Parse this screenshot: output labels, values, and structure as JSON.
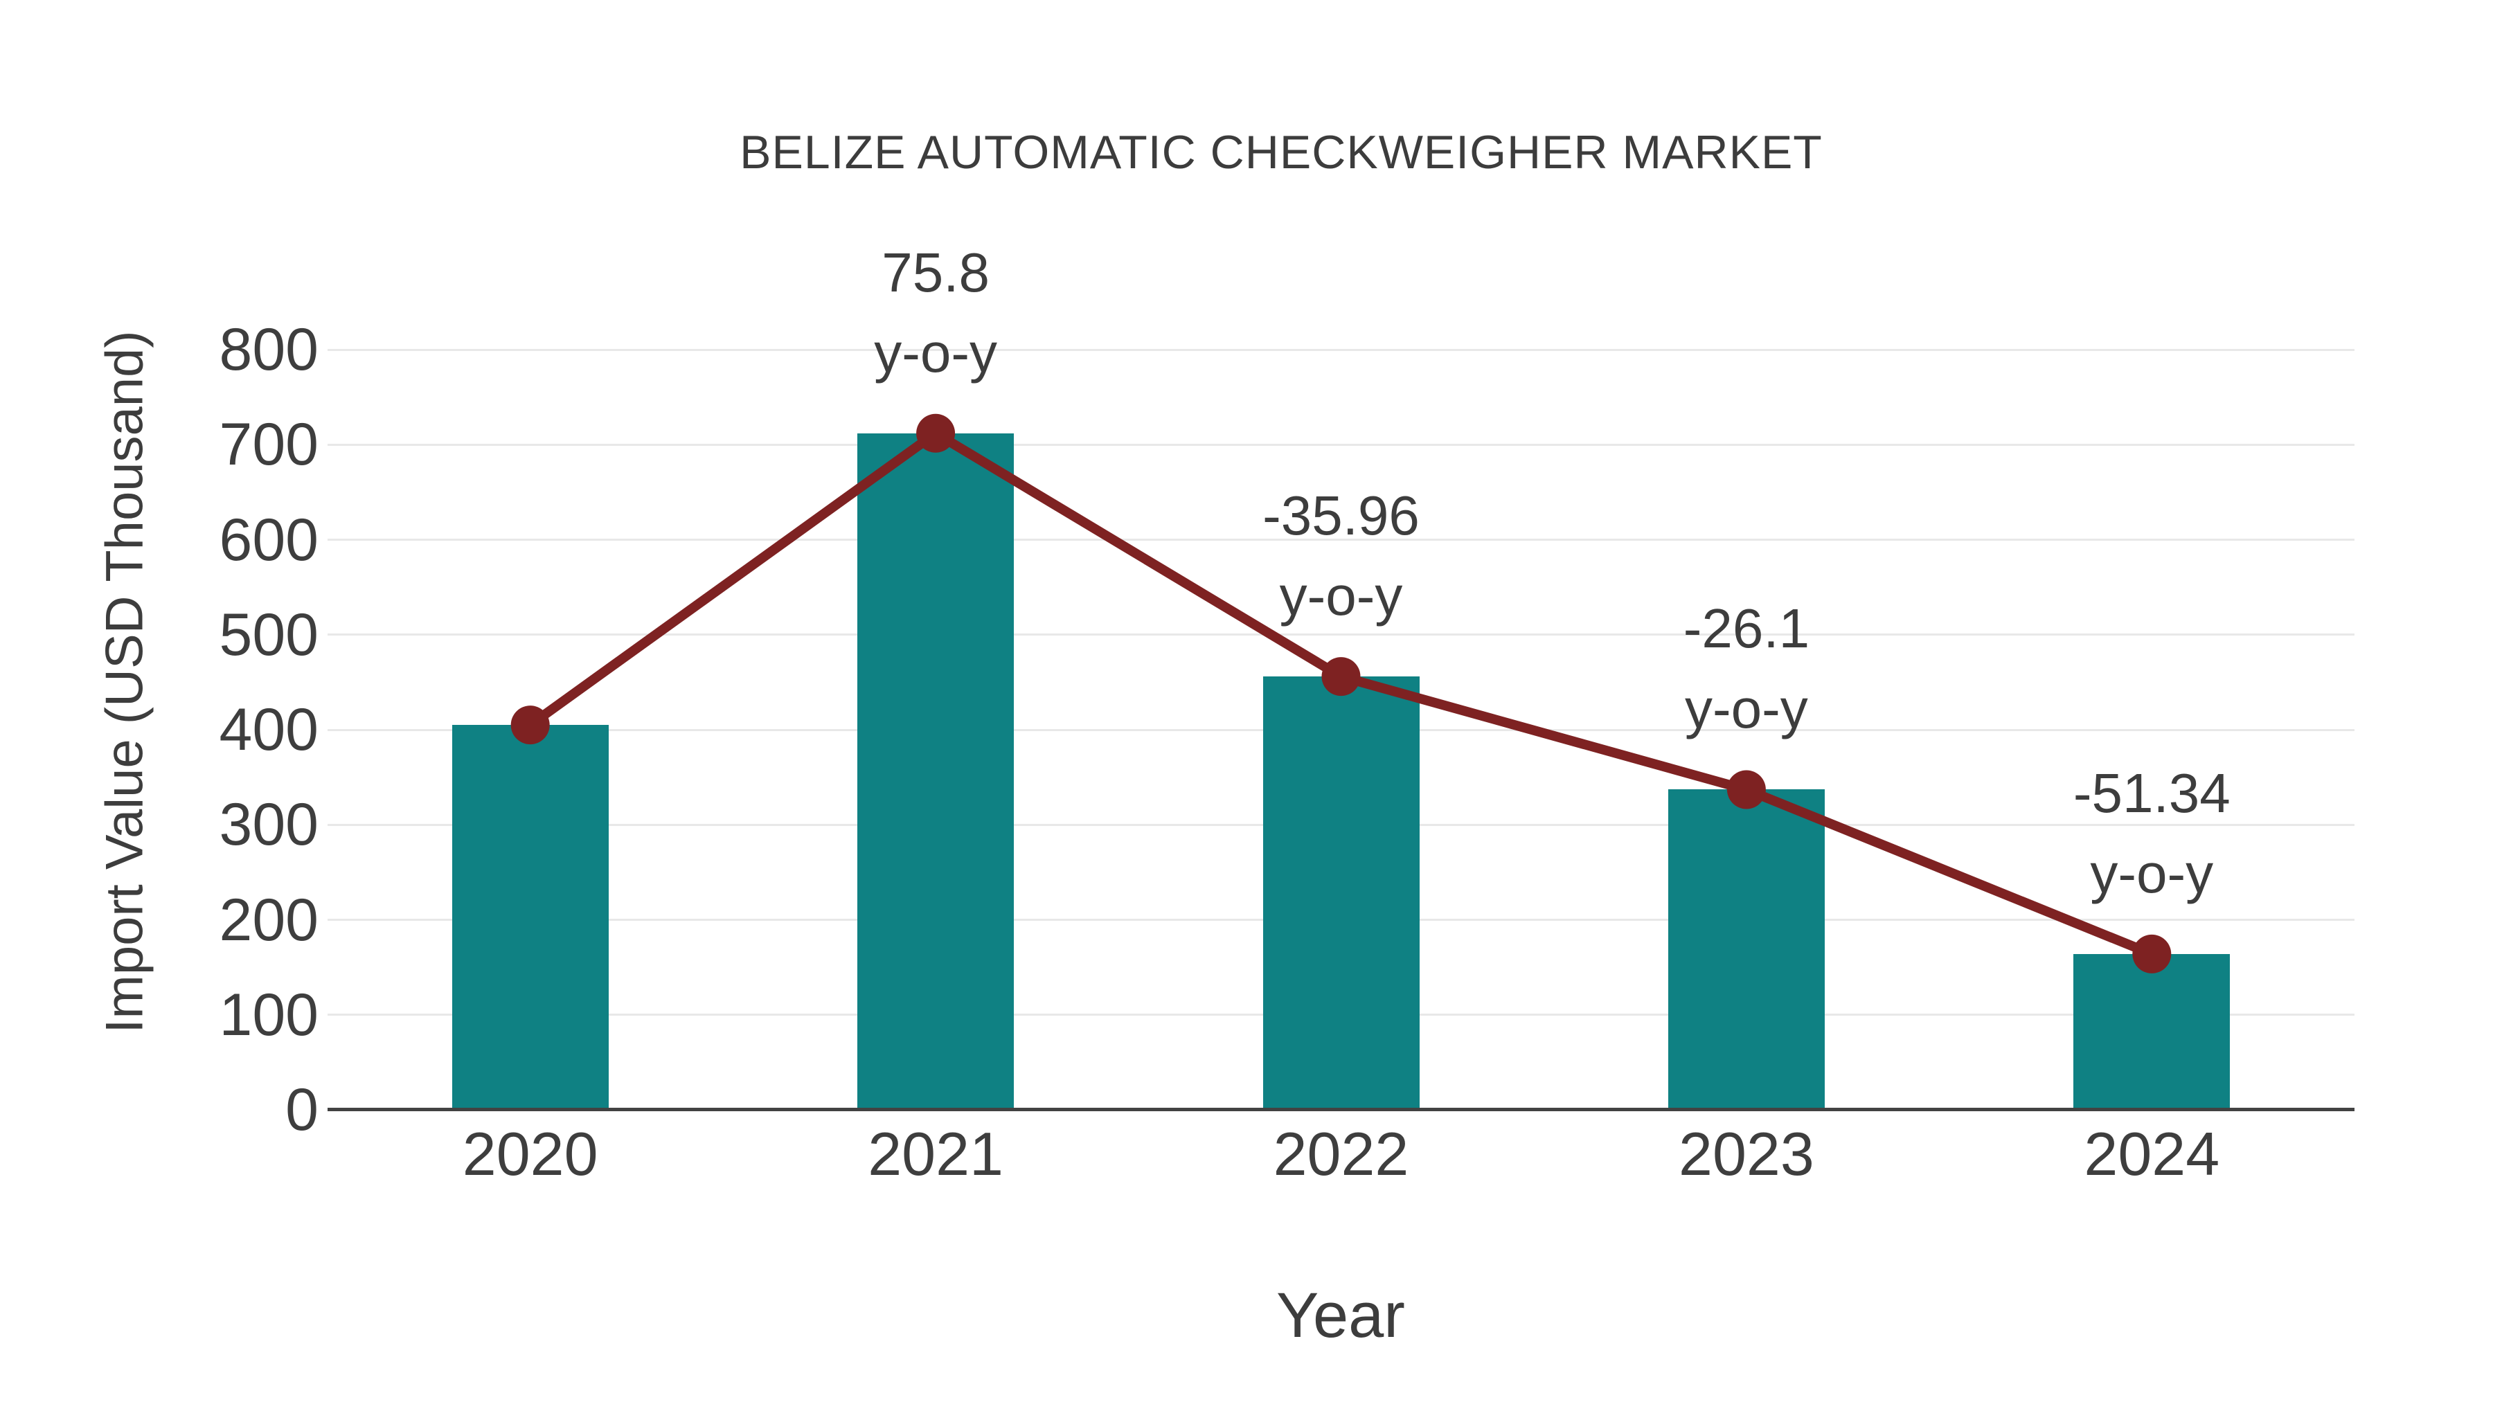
{
  "chart_data": {
    "type": "bar",
    "title": "BELIZE AUTOMATIC CHECKWEIGHER MARKET",
    "categories": [
      "2020",
      "2021",
      "2022",
      "2023",
      "2024"
    ],
    "values": [
      405,
      712,
      456,
      337,
      164
    ],
    "line_overlay": {
      "values": [
        405,
        712,
        456,
        337,
        164
      ],
      "marker": "circle"
    },
    "annotations": [
      {
        "category": "2021",
        "text_line1": "75.8",
        "text_line2": "y-o-y"
      },
      {
        "category": "2022",
        "text_line1": "-35.96",
        "text_line2": "y-o-y"
      },
      {
        "category": "2023",
        "text_line1": "-26.1",
        "text_line2": "y-o-y"
      },
      {
        "category": "2024",
        "text_line1": "-51.34",
        "text_line2": "y-o-y"
      }
    ],
    "xlabel": "Year",
    "ylabel": "Import Value (USD Thousand)",
    "ylim": [
      0,
      800
    ],
    "ytick_step": 100,
    "grid": true,
    "legend": "none",
    "colors": {
      "bar": "#0f8183",
      "line": "#7e2222",
      "text": "#3d3d3d",
      "gridline": "#e8e8e8",
      "axis_line": "#424242",
      "background": "#ffffff"
    }
  }
}
